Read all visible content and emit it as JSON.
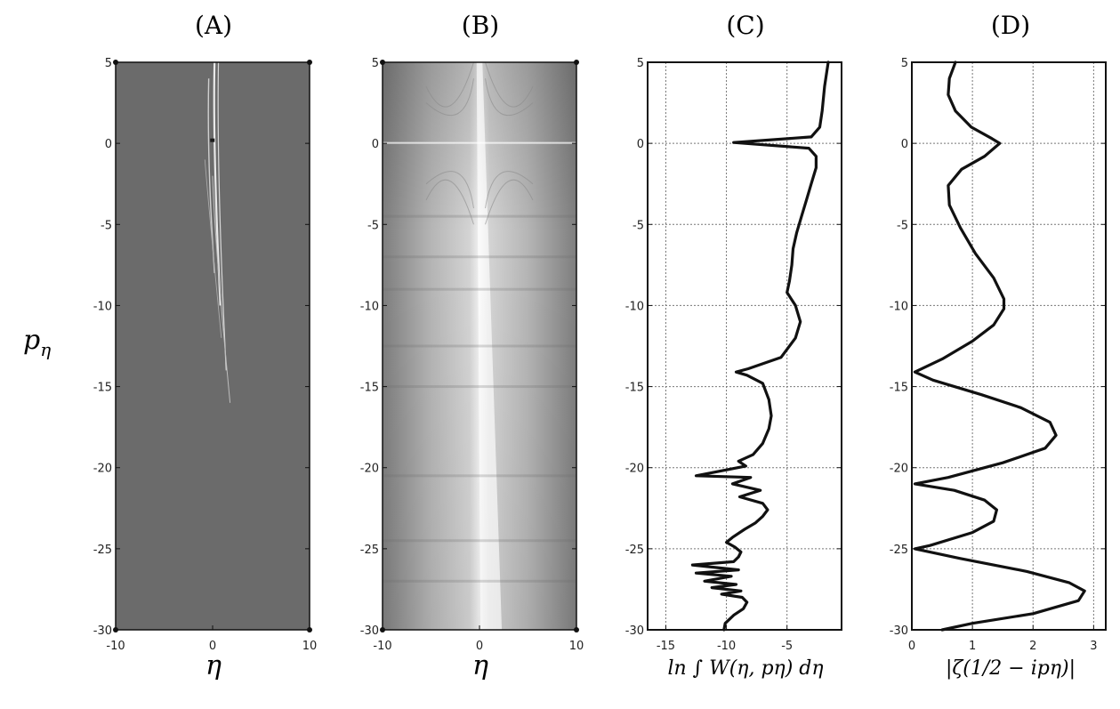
{
  "ylabel": {
    "base": "p",
    "sub": "η"
  },
  "chart_data": [
    {
      "type": "heatmap",
      "panel_label": "(A)",
      "xlabel": "η",
      "xlim": [
        -10,
        10
      ],
      "ylim": [
        -30,
        5
      ],
      "xticks": [
        -10,
        0,
        10
      ],
      "yticks": [
        5,
        0,
        -5,
        -10,
        -15,
        -20,
        -25,
        -30
      ],
      "background": "#6b6b6b",
      "grid": false
    },
    {
      "type": "heatmap",
      "panel_label": "(B)",
      "xlabel": "η",
      "xlim": [
        -10,
        10
      ],
      "ylim": [
        -30,
        5
      ],
      "xticks": [
        -10,
        0,
        10
      ],
      "yticks": [
        5,
        0,
        -5,
        -10,
        -15,
        -20,
        -25,
        -30
      ],
      "grid": false
    },
    {
      "type": "line",
      "panel_label": "(C)",
      "xlabel": "ln ∫ W(η, pη) dη",
      "xlim": [
        -16.5,
        -0.5
      ],
      "ylim": [
        -30,
        5
      ],
      "xticks": [
        -15,
        -10,
        -5
      ],
      "yticks": [
        5,
        0,
        -5,
        -10,
        -15,
        -20,
        -25,
        -30
      ],
      "grid": true,
      "points": [
        [
          -1.6,
          5
        ],
        [
          -1.9,
          3.5
        ],
        [
          -2.1,
          2
        ],
        [
          -2.3,
          1
        ],
        [
          -3.0,
          0.4
        ],
        [
          -9.4,
          0.05
        ],
        [
          -3.2,
          -0.3
        ],
        [
          -2.6,
          -0.8
        ],
        [
          -2.6,
          -1.5
        ],
        [
          -3.0,
          -2.5
        ],
        [
          -3.4,
          -3.5
        ],
        [
          -3.8,
          -4.5
        ],
        [
          -4.2,
          -5.5
        ],
        [
          -4.5,
          -6.5
        ],
        [
          -4.6,
          -7.5
        ],
        [
          -4.8,
          -8.5
        ],
        [
          -5.0,
          -9.2
        ],
        [
          -4.3,
          -10
        ],
        [
          -3.9,
          -11
        ],
        [
          -4.3,
          -12
        ],
        [
          -5.5,
          -13.2
        ],
        [
          -8.2,
          -13.9
        ],
        [
          -9.2,
          -14.1
        ],
        [
          -8.3,
          -14.3
        ],
        [
          -7.0,
          -14.8
        ],
        [
          -6.5,
          -15.8
        ],
        [
          -6.3,
          -16.8
        ],
        [
          -6.5,
          -17.6
        ],
        [
          -7.0,
          -18.5
        ],
        [
          -7.8,
          -19.2
        ],
        [
          -9.0,
          -19.6
        ],
        [
          -8.4,
          -19.9
        ],
        [
          -12.5,
          -20.5
        ],
        [
          -8.0,
          -20.6
        ],
        [
          -9.5,
          -21.0
        ],
        [
          -7.2,
          -21.4
        ],
        [
          -8.9,
          -21.8
        ],
        [
          -7.0,
          -22.2
        ],
        [
          -6.6,
          -22.6
        ],
        [
          -7.0,
          -23.0
        ],
        [
          -7.6,
          -23.4
        ],
        [
          -8.5,
          -23.8
        ],
        [
          -9.5,
          -24.3
        ],
        [
          -10.0,
          -24.6
        ],
        [
          -9.3,
          -24.9
        ],
        [
          -8.8,
          -25.2
        ],
        [
          -9.0,
          -25.5
        ],
        [
          -9.4,
          -25.8
        ],
        [
          -12.8,
          -26.0
        ],
        [
          -9.0,
          -26.3
        ],
        [
          -12.5,
          -26.5
        ],
        [
          -9.6,
          -26.7
        ],
        [
          -11.8,
          -27.0
        ],
        [
          -9.2,
          -27.2
        ],
        [
          -11.2,
          -27.4
        ],
        [
          -8.8,
          -27.6
        ],
        [
          -10.4,
          -27.8
        ],
        [
          -8.7,
          -28.0
        ],
        [
          -8.3,
          -28.3
        ],
        [
          -8.6,
          -28.7
        ],
        [
          -9.4,
          -29.1
        ],
        [
          -10.1,
          -29.6
        ],
        [
          -10.2,
          -30
        ]
      ]
    },
    {
      "type": "line",
      "panel_label": "(D)",
      "xlabel": "|ζ(1/2 − ipη)|",
      "xlim": [
        0,
        3.2
      ],
      "ylim": [
        -30,
        5
      ],
      "xticks": [
        0,
        1,
        2,
        3
      ],
      "yticks": [
        5,
        0,
        -5,
        -10,
        -15,
        -20,
        -25,
        -30
      ],
      "grid": true,
      "points": [
        [
          0.72,
          5
        ],
        [
          0.62,
          4
        ],
        [
          0.6,
          3
        ],
        [
          0.72,
          2
        ],
        [
          0.98,
          1
        ],
        [
          1.32,
          0.3
        ],
        [
          1.45,
          0
        ],
        [
          1.2,
          -0.8
        ],
        [
          0.82,
          -1.6
        ],
        [
          0.6,
          -2.6
        ],
        [
          0.62,
          -3.8
        ],
        [
          0.8,
          -5.2
        ],
        [
          1.05,
          -6.8
        ],
        [
          1.35,
          -8.3
        ],
        [
          1.52,
          -9.6
        ],
        [
          1.52,
          -10.2
        ],
        [
          1.35,
          -11.2
        ],
        [
          1.0,
          -12.2
        ],
        [
          0.5,
          -13.3
        ],
        [
          0.05,
          -14.1
        ],
        [
          0.35,
          -14.6
        ],
        [
          1.15,
          -15.5
        ],
        [
          1.8,
          -16.3
        ],
        [
          2.28,
          -17.2
        ],
        [
          2.38,
          -18.0
        ],
        [
          2.2,
          -18.8
        ],
        [
          1.5,
          -19.7
        ],
        [
          0.6,
          -20.6
        ],
        [
          0.05,
          -21.0
        ],
        [
          0.7,
          -21.4
        ],
        [
          1.2,
          -22.0
        ],
        [
          1.4,
          -22.6
        ],
        [
          1.35,
          -23.3
        ],
        [
          1.0,
          -24.0
        ],
        [
          0.3,
          -24.8
        ],
        [
          0.05,
          -25.0
        ],
        [
          0.8,
          -25.6
        ],
        [
          1.9,
          -26.4
        ],
        [
          2.6,
          -27.1
        ],
        [
          2.85,
          -27.6
        ],
        [
          2.75,
          -28.2
        ],
        [
          2.0,
          -29.0
        ],
        [
          1.0,
          -29.6
        ],
        [
          0.5,
          -30
        ]
      ]
    }
  ]
}
